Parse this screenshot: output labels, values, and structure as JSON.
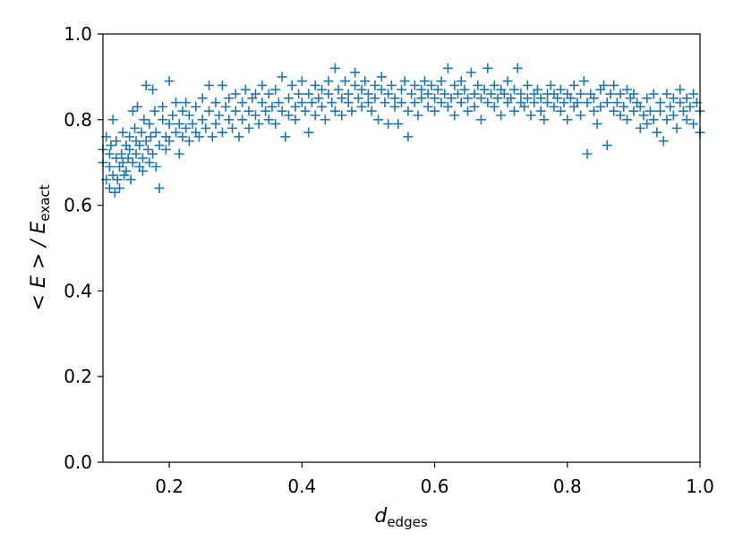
{
  "chart_data": {
    "type": "scatter",
    "marker": "plus",
    "color": "#1f77b4",
    "xlabel": {
      "main": "d",
      "sub": "edges"
    },
    "ylabel": {
      "main": "< E > / E",
      "sub": "exact"
    },
    "xlim": [
      0.1,
      1.0
    ],
    "ylim": [
      0.0,
      1.0
    ],
    "xticks": [
      {
        "value": 0.2,
        "label": "0.2"
      },
      {
        "value": 0.4,
        "label": "0.4"
      },
      {
        "value": 0.6,
        "label": "0.6"
      },
      {
        "value": 0.8,
        "label": "0.8"
      },
      {
        "value": 1.0,
        "label": "1.0"
      }
    ],
    "yticks": [
      {
        "value": 0.0,
        "label": "0.0"
      },
      {
        "value": 0.2,
        "label": "0.2"
      },
      {
        "value": 0.4,
        "label": "0.4"
      },
      {
        "value": 0.6,
        "label": "0.6"
      },
      {
        "value": 0.8,
        "label": "0.8"
      },
      {
        "value": 1.0,
        "label": "1.0"
      }
    ],
    "grid": false,
    "points": [
      [
        0.1,
        0.73
      ],
      [
        0.1,
        0.7
      ],
      [
        0.105,
        0.76
      ],
      [
        0.105,
        0.66
      ],
      [
        0.11,
        0.72
      ],
      [
        0.11,
        0.69
      ],
      [
        0.11,
        0.64
      ],
      [
        0.112,
        0.74
      ],
      [
        0.115,
        0.8
      ],
      [
        0.115,
        0.67
      ],
      [
        0.118,
        0.63
      ],
      [
        0.12,
        0.71
      ],
      [
        0.12,
        0.75
      ],
      [
        0.122,
        0.66
      ],
      [
        0.125,
        0.69
      ],
      [
        0.125,
        0.64
      ],
      [
        0.128,
        0.72
      ],
      [
        0.13,
        0.77
      ],
      [
        0.13,
        0.7
      ],
      [
        0.132,
        0.67
      ],
      [
        0.135,
        0.74
      ],
      [
        0.135,
        0.68
      ],
      [
        0.138,
        0.71
      ],
      [
        0.14,
        0.76
      ],
      [
        0.14,
        0.73
      ],
      [
        0.142,
        0.66
      ],
      [
        0.145,
        0.82
      ],
      [
        0.145,
        0.7
      ],
      [
        0.148,
        0.78
      ],
      [
        0.15,
        0.72
      ],
      [
        0.15,
        0.75
      ],
      [
        0.152,
        0.83
      ],
      [
        0.155,
        0.69
      ],
      [
        0.155,
        0.74
      ],
      [
        0.158,
        0.77
      ],
      [
        0.16,
        0.71
      ],
      [
        0.16,
        0.68
      ],
      [
        0.162,
        0.8
      ],
      [
        0.165,
        0.88
      ],
      [
        0.165,
        0.75
      ],
      [
        0.168,
        0.73
      ],
      [
        0.17,
        0.79
      ],
      [
        0.17,
        0.7
      ],
      [
        0.172,
        0.76
      ],
      [
        0.175,
        0.87
      ],
      [
        0.175,
        0.72
      ],
      [
        0.178,
        0.82
      ],
      [
        0.18,
        0.69
      ],
      [
        0.18,
        0.77
      ],
      [
        0.185,
        0.64
      ],
      [
        0.185,
        0.74
      ],
      [
        0.19,
        0.8
      ],
      [
        0.19,
        0.83
      ],
      [
        0.195,
        0.76
      ],
      [
        0.195,
        0.73
      ],
      [
        0.2,
        0.89
      ],
      [
        0.2,
        0.79
      ],
      [
        0.2,
        0.75
      ],
      [
        0.205,
        0.81
      ],
      [
        0.21,
        0.77
      ],
      [
        0.21,
        0.84
      ],
      [
        0.215,
        0.72
      ],
      [
        0.215,
        0.79
      ],
      [
        0.22,
        0.82
      ],
      [
        0.22,
        0.76
      ],
      [
        0.225,
        0.84
      ],
      [
        0.225,
        0.78
      ],
      [
        0.23,
        0.75
      ],
      [
        0.23,
        0.81
      ],
      [
        0.235,
        0.79
      ],
      [
        0.24,
        0.77
      ],
      [
        0.24,
        0.83
      ],
      [
        0.245,
        0.76
      ],
      [
        0.25,
        0.8
      ],
      [
        0.25,
        0.85
      ],
      [
        0.255,
        0.78
      ],
      [
        0.26,
        0.88
      ],
      [
        0.26,
        0.82
      ],
      [
        0.265,
        0.76
      ],
      [
        0.27,
        0.84
      ],
      [
        0.27,
        0.79
      ],
      [
        0.275,
        0.81
      ],
      [
        0.28,
        0.88
      ],
      [
        0.28,
        0.77
      ],
      [
        0.285,
        0.83
      ],
      [
        0.29,
        0.8
      ],
      [
        0.29,
        0.85
      ],
      [
        0.295,
        0.78
      ],
      [
        0.3,
        0.86
      ],
      [
        0.3,
        0.82
      ],
      [
        0.305,
        0.76
      ],
      [
        0.31,
        0.84
      ],
      [
        0.31,
        0.8
      ],
      [
        0.315,
        0.87
      ],
      [
        0.32,
        0.82
      ],
      [
        0.32,
        0.78
      ],
      [
        0.325,
        0.85
      ],
      [
        0.33,
        0.81
      ],
      [
        0.33,
        0.86
      ],
      [
        0.335,
        0.79
      ],
      [
        0.34,
        0.84
      ],
      [
        0.34,
        0.88
      ],
      [
        0.345,
        0.82
      ],
      [
        0.35,
        0.8
      ],
      [
        0.35,
        0.86
      ],
      [
        0.355,
        0.83
      ],
      [
        0.36,
        0.79
      ],
      [
        0.36,
        0.87
      ],
      [
        0.365,
        0.84
      ],
      [
        0.37,
        0.82
      ],
      [
        0.37,
        0.9
      ],
      [
        0.375,
        0.76
      ],
      [
        0.38,
        0.85
      ],
      [
        0.38,
        0.81
      ],
      [
        0.385,
        0.88
      ],
      [
        0.39,
        0.83
      ],
      [
        0.39,
        0.8
      ],
      [
        0.395,
        0.86
      ],
      [
        0.4,
        0.84
      ],
      [
        0.4,
        0.89
      ],
      [
        0.405,
        0.82
      ],
      [
        0.41,
        0.77
      ],
      [
        0.41,
        0.86
      ],
      [
        0.415,
        0.84
      ],
      [
        0.42,
        0.81
      ],
      [
        0.42,
        0.88
      ],
      [
        0.425,
        0.85
      ],
      [
        0.43,
        0.83
      ],
      [
        0.43,
        0.87
      ],
      [
        0.435,
        0.8
      ],
      [
        0.44,
        0.86
      ],
      [
        0.44,
        0.89
      ],
      [
        0.445,
        0.84
      ],
      [
        0.45,
        0.92
      ],
      [
        0.45,
        0.82
      ],
      [
        0.455,
        0.87
      ],
      [
        0.46,
        0.85
      ],
      [
        0.46,
        0.81
      ],
      [
        0.465,
        0.89
      ],
      [
        0.47,
        0.84
      ],
      [
        0.47,
        0.86
      ],
      [
        0.475,
        0.82
      ],
      [
        0.48,
        0.88
      ],
      [
        0.48,
        0.91
      ],
      [
        0.485,
        0.85
      ],
      [
        0.49,
        0.83
      ],
      [
        0.49,
        0.87
      ],
      [
        0.495,
        0.89
      ],
      [
        0.5,
        0.84
      ],
      [
        0.5,
        0.86
      ],
      [
        0.505,
        0.82
      ],
      [
        0.51,
        0.88
      ],
      [
        0.51,
        0.85
      ],
      [
        0.515,
        0.8
      ],
      [
        0.52,
        0.87
      ],
      [
        0.52,
        0.9
      ],
      [
        0.525,
        0.84
      ],
      [
        0.53,
        0.86
      ],
      [
        0.53,
        0.79
      ],
      [
        0.535,
        0.88
      ],
      [
        0.54,
        0.85
      ],
      [
        0.54,
        0.83
      ],
      [
        0.545,
        0.79
      ],
      [
        0.55,
        0.87
      ],
      [
        0.55,
        0.84
      ],
      [
        0.555,
        0.89
      ],
      [
        0.56,
        0.82
      ],
      [
        0.56,
        0.76
      ],
      [
        0.565,
        0.86
      ],
      [
        0.57,
        0.88
      ],
      [
        0.57,
        0.84
      ],
      [
        0.575,
        0.81
      ],
      [
        0.58,
        0.87
      ],
      [
        0.58,
        0.85
      ],
      [
        0.585,
        0.89
      ],
      [
        0.59,
        0.83
      ],
      [
        0.59,
        0.86
      ],
      [
        0.595,
        0.88
      ],
      [
        0.6,
        0.85
      ],
      [
        0.6,
        0.82
      ],
      [
        0.605,
        0.87
      ],
      [
        0.61,
        0.84
      ],
      [
        0.61,
        0.89
      ],
      [
        0.615,
        0.86
      ],
      [
        0.62,
        0.83
      ],
      [
        0.62,
        0.92
      ],
      [
        0.625,
        0.85
      ],
      [
        0.63,
        0.88
      ],
      [
        0.63,
        0.81
      ],
      [
        0.635,
        0.86
      ],
      [
        0.64,
        0.84
      ],
      [
        0.64,
        0.89
      ],
      [
        0.645,
        0.87
      ],
      [
        0.65,
        0.85
      ],
      [
        0.65,
        0.82
      ],
      [
        0.655,
        0.91
      ],
      [
        0.66,
        0.86
      ],
      [
        0.66,
        0.83
      ],
      [
        0.665,
        0.88
      ],
      [
        0.67,
        0.85
      ],
      [
        0.67,
        0.8
      ],
      [
        0.675,
        0.87
      ],
      [
        0.68,
        0.92
      ],
      [
        0.68,
        0.84
      ],
      [
        0.685,
        0.86
      ],
      [
        0.69,
        0.88
      ],
      [
        0.69,
        0.83
      ],
      [
        0.695,
        0.85
      ],
      [
        0.7,
        0.87
      ],
      [
        0.7,
        0.81
      ],
      [
        0.705,
        0.86
      ],
      [
        0.71,
        0.84
      ],
      [
        0.71,
        0.89
      ],
      [
        0.715,
        0.85
      ],
      [
        0.72,
        0.82
      ],
      [
        0.72,
        0.87
      ],
      [
        0.725,
        0.92
      ],
      [
        0.73,
        0.84
      ],
      [
        0.73,
        0.86
      ],
      [
        0.735,
        0.83
      ],
      [
        0.74,
        0.88
      ],
      [
        0.74,
        0.85
      ],
      [
        0.745,
        0.81
      ],
      [
        0.75,
        0.86
      ],
      [
        0.75,
        0.84
      ],
      [
        0.755,
        0.87
      ],
      [
        0.76,
        0.82
      ],
      [
        0.76,
        0.85
      ],
      [
        0.765,
        0.8
      ],
      [
        0.77,
        0.86
      ],
      [
        0.77,
        0.84
      ],
      [
        0.775,
        0.88
      ],
      [
        0.78,
        0.83
      ],
      [
        0.78,
        0.86
      ],
      [
        0.785,
        0.85
      ],
      [
        0.79,
        0.82
      ],
      [
        0.79,
        0.87
      ],
      [
        0.795,
        0.84
      ],
      [
        0.8,
        0.86
      ],
      [
        0.8,
        0.8
      ],
      [
        0.805,
        0.85
      ],
      [
        0.81,
        0.83
      ],
      [
        0.81,
        0.88
      ],
      [
        0.815,
        0.84
      ],
      [
        0.82,
        0.86
      ],
      [
        0.82,
        0.81
      ],
      [
        0.825,
        0.89
      ],
      [
        0.83,
        0.84
      ],
      [
        0.83,
        0.72
      ],
      [
        0.835,
        0.86
      ],
      [
        0.84,
        0.82
      ],
      [
        0.84,
        0.85
      ],
      [
        0.845,
        0.79
      ],
      [
        0.85,
        0.87
      ],
      [
        0.85,
        0.83
      ],
      [
        0.855,
        0.88
      ],
      [
        0.86,
        0.84
      ],
      [
        0.86,
        0.74
      ],
      [
        0.865,
        0.86
      ],
      [
        0.87,
        0.82
      ],
      [
        0.87,
        0.88
      ],
      [
        0.875,
        0.84
      ],
      [
        0.88,
        0.81
      ],
      [
        0.88,
        0.86
      ],
      [
        0.885,
        0.83
      ],
      [
        0.89,
        0.87
      ],
      [
        0.89,
        0.8
      ],
      [
        0.895,
        0.85
      ],
      [
        0.9,
        0.82
      ],
      [
        0.9,
        0.86
      ],
      [
        0.905,
        0.84
      ],
      [
        0.91,
        0.78
      ],
      [
        0.91,
        0.83
      ],
      [
        0.915,
        0.81
      ],
      [
        0.92,
        0.85
      ],
      [
        0.92,
        0.79
      ],
      [
        0.925,
        0.82
      ],
      [
        0.93,
        0.86
      ],
      [
        0.93,
        0.8
      ],
      [
        0.935,
        0.77
      ],
      [
        0.94,
        0.84
      ],
      [
        0.94,
        0.82
      ],
      [
        0.945,
        0.75
      ],
      [
        0.95,
        0.86
      ],
      [
        0.95,
        0.8
      ],
      [
        0.955,
        0.83
      ],
      [
        0.96,
        0.85
      ],
      [
        0.96,
        0.81
      ],
      [
        0.965,
        0.78
      ],
      [
        0.97,
        0.84
      ],
      [
        0.97,
        0.87
      ],
      [
        0.975,
        0.82
      ],
      [
        0.98,
        0.8
      ],
      [
        0.98,
        0.85
      ],
      [
        0.985,
        0.83
      ],
      [
        0.99,
        0.86
      ],
      [
        0.99,
        0.79
      ],
      [
        0.995,
        0.84
      ],
      [
        1.0,
        0.82
      ],
      [
        1.0,
        0.77
      ]
    ]
  }
}
